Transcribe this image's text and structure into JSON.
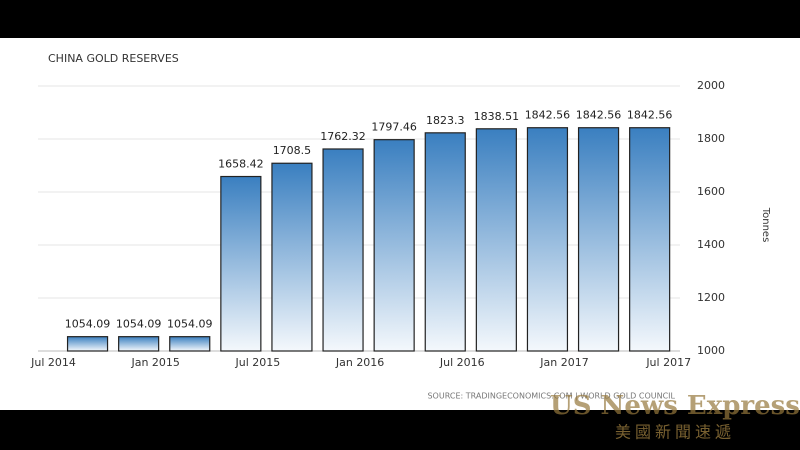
{
  "chart_data": {
    "type": "bar",
    "title": "CHINA GOLD RESERVES",
    "values": [
      1054.09,
      1054.09,
      1054.09,
      1658.42,
      1708.5,
      1762.32,
      1797.46,
      1823.3,
      1838.51,
      1842.56,
      1842.56,
      1842.56
    ],
    "color": "#3a7fc0",
    "xticks": [
      "Jul 2014",
      "Jan 2015",
      "Jul 2015",
      "Jan 2016",
      "Jul 2016",
      "Jan 2017",
      "Jul 2017"
    ],
    "ylim": [
      1000,
      2000
    ],
    "yticks": [
      1000,
      1200,
      1400,
      1600,
      1800,
      2000
    ],
    "grid": true,
    "ylabel": "Tonnes",
    "source": "SOURCE: TRADINGECONOMICS.COM | WORLD GOLD COUNCIL"
  },
  "watermark": {
    "title": "US News Express",
    "subtitle": "美國新聞速遞"
  }
}
